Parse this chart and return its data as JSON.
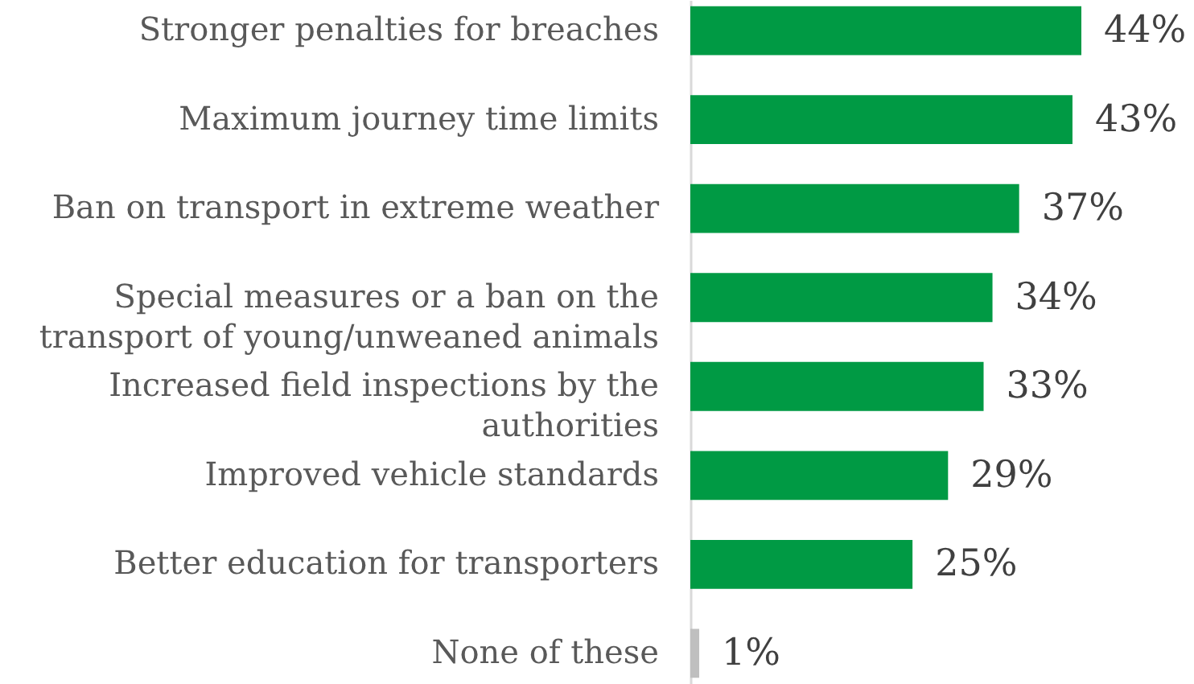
{
  "chart_data": {
    "type": "bar",
    "orientation": "horizontal",
    "categories": [
      "Stronger penalties for breaches",
      "Maximum journey time limits",
      "Ban on transport in extreme weather",
      "Special measures or a ban on the transport of young/unweaned animals",
      "Increased field inspections by the authorities",
      "Improved vehicle standards",
      "Better education for transporters",
      "None of these"
    ],
    "values": [
      44,
      43,
      37,
      34,
      33,
      29,
      25,
      1
    ],
    "colors": [
      "#009a44",
      "#009a44",
      "#009a44",
      "#009a44",
      "#009a44",
      "#009a44",
      "#009a44",
      "#bfbfbf"
    ],
    "value_labels": [
      "44%",
      "43%",
      "37%",
      "34%",
      "33%",
      "29%",
      "25%",
      "1%"
    ],
    "tick_labels": "y"
  }
}
